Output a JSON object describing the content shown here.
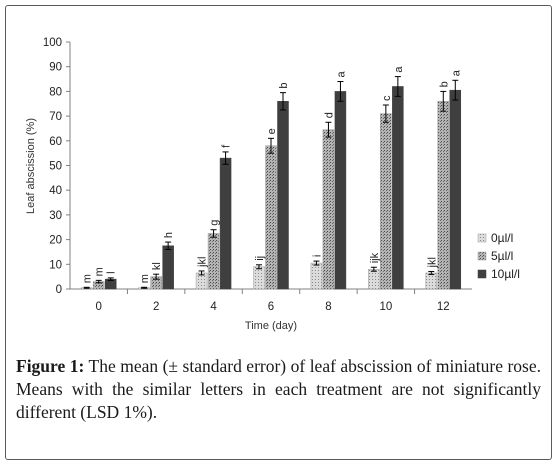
{
  "figure": {
    "caption_label": "Figure 1:",
    "caption_text": "The mean (± standard error) of leaf abscission of miniature rose. Means with the similar letters in each treatment are not significantly different (LSD 1%)."
  },
  "chart_data": {
    "type": "bar",
    "xlabel": "Time (day)",
    "ylabel": "Leaf abscission (%)",
    "ylim": [
      0,
      100
    ],
    "yticks": [
      0,
      10,
      20,
      30,
      40,
      50,
      60,
      70,
      80,
      90,
      100
    ],
    "categories": [
      "0",
      "2",
      "4",
      "6",
      "8",
      "10",
      "12"
    ],
    "legend_position": "right",
    "grid": false,
    "series": [
      {
        "name": "0µl/l",
        "color": "#c8c8c8",
        "pattern": "light-dotted",
        "values": [
          0.5,
          0.5,
          6.5,
          9.0,
          10.5,
          8.0,
          6.5
        ],
        "errors": [
          0.2,
          0.2,
          0.8,
          0.8,
          0.8,
          0.8,
          0.6
        ],
        "letters": [
          "m",
          "m",
          "jkl",
          "ij",
          "i",
          "ijk",
          "jkl"
        ]
      },
      {
        "name": "5µl/l",
        "color": "#9a9a9a",
        "pattern": "dark-dotted",
        "values": [
          3.0,
          5.0,
          22.5,
          58.0,
          64.5,
          71.0,
          76.0
        ],
        "errors": [
          0.5,
          1.0,
          1.5,
          3.0,
          3.0,
          3.5,
          4.0
        ],
        "letters": [
          "m",
          "kl",
          "g",
          "e",
          "d",
          "c",
          "b"
        ]
      },
      {
        "name": "10µl/l",
        "color": "#3f3f3f",
        "pattern": "solid",
        "values": [
          4.0,
          17.5,
          53.0,
          76.0,
          80.0,
          82.0,
          80.5
        ],
        "errors": [
          0.5,
          1.5,
          2.5,
          3.5,
          4.0,
          4.0,
          4.0
        ],
        "letters": [
          "l",
          "h",
          "f",
          "b",
          "a",
          "a",
          "a"
        ]
      }
    ]
  }
}
